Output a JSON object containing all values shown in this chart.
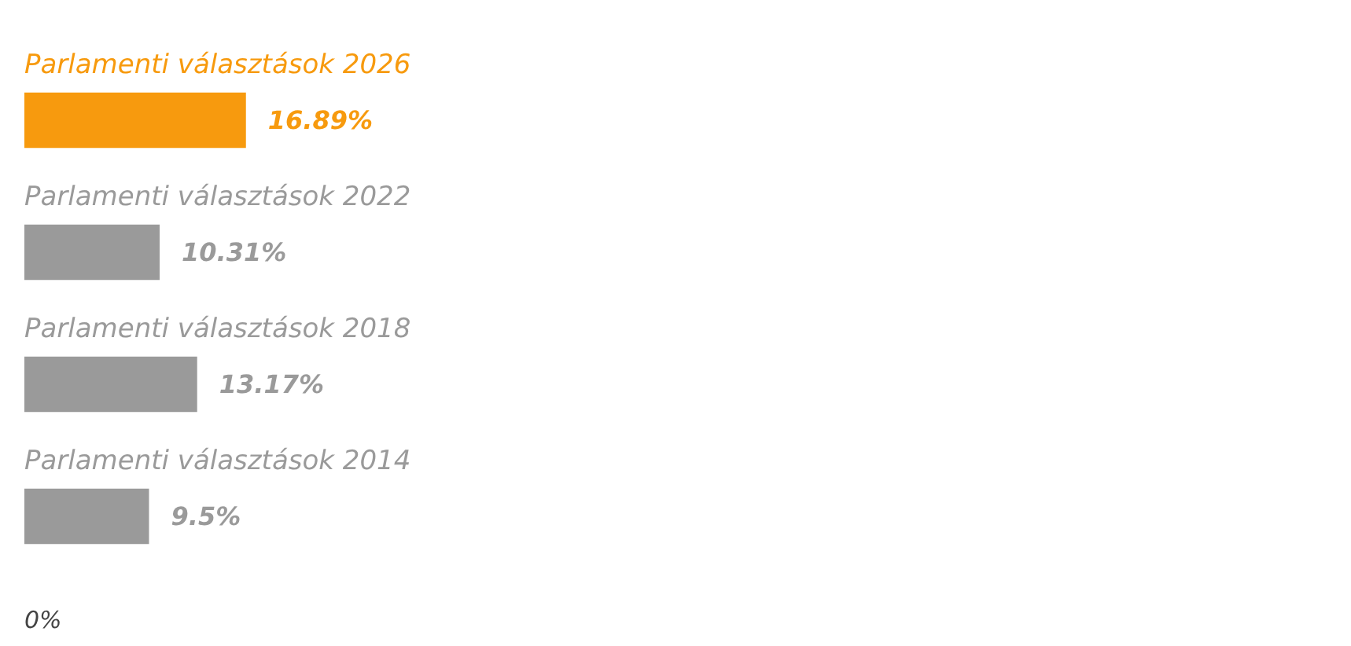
{
  "chart_data": {
    "type": "bar",
    "orientation": "horizontal",
    "categories": [
      "Parlamenti választások 2026",
      "Parlamenti választások 2022",
      "Parlamenti választások 2018",
      "Parlamenti választások 2014"
    ],
    "values": [
      16.89,
      10.31,
      13.17,
      9.5
    ],
    "colors": [
      "#f79a0e",
      "#9a9a9a",
      "#9a9a9a",
      "#9a9a9a"
    ],
    "value_labels": [
      "16.89%",
      "10.31%",
      "13.17%",
      "9.5%"
    ],
    "annotations": [
      "0%"
    ]
  }
}
